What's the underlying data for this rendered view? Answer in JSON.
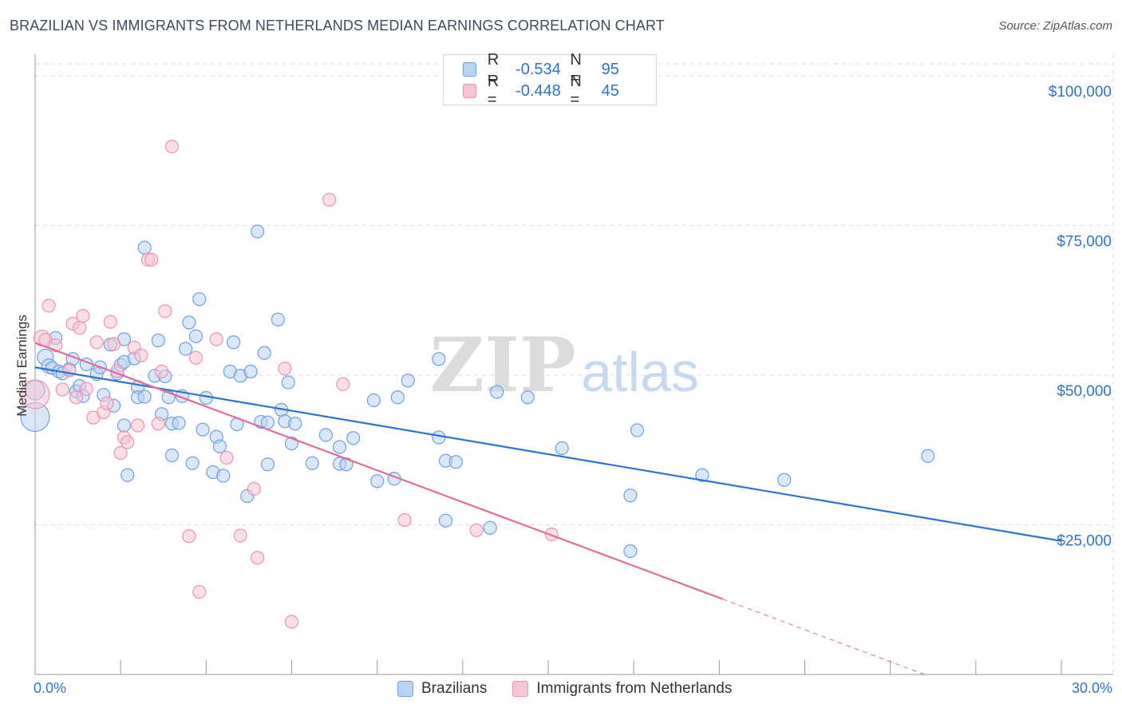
{
  "header": {
    "title": "BRAZILIAN VS IMMIGRANTS FROM NETHERLANDS MEDIAN EARNINGS CORRELATION CHART",
    "source": "Source: ZipAtlas.com"
  },
  "colors": {
    "blue": "#2e72d2",
    "blue_fill": "#b9d3f3",
    "blue_stroke": "#6f9fdf",
    "pink": "#e06b97",
    "pink_fill": "#f7c4d5",
    "pink_stroke": "#ec92b2",
    "grid": "#dcdcdc",
    "axis_text": "#2e72d2"
  },
  "legend_top": {
    "rows": [
      {
        "r_label": "R =",
        "r_value": "-0.534",
        "n_label": "N =",
        "n_value": "95"
      },
      {
        "r_label": "R =",
        "r_value": "-0.448",
        "n_label": "N =",
        "n_value": "45"
      }
    ]
  },
  "watermark": {
    "zip": "ZIP",
    "atlas": "atlas"
  },
  "chart_data": {
    "type": "scatter",
    "title": "BRAZILIAN VS IMMIGRANTS FROM NETHERLANDS MEDIAN EARNINGS CORRELATION CHART",
    "xlabel": "",
    "ylabel": "Median Earnings",
    "x_tick_labels": [
      "0.0%",
      "30.0%"
    ],
    "y_tick_labels": [
      "$100,000",
      "$75,000",
      "$50,000",
      "$25,000"
    ],
    "y_ticks": [
      100000,
      75000,
      50000,
      25000
    ],
    "xlim": [
      0,
      30
    ],
    "ylim": [
      0,
      102000
    ],
    "grid": true,
    "legend_placement": "bottom",
    "series": [
      {
        "name": "Brazilians",
        "color": "#2e72d2",
        "r": -0.534,
        "n": 95,
        "trend": {
          "x": [
            0,
            30
          ],
          "y": [
            51300,
            22300
          ],
          "dashed_from": null
        },
        "points": [
          [
            0.0,
            43000,
            18
          ],
          [
            0.0,
            47500,
            12
          ],
          [
            0.3,
            53000,
            10
          ],
          [
            0.4,
            51500,
            9
          ],
          [
            0.5,
            51200,
            8
          ],
          [
            0.6,
            56200,
            8
          ],
          [
            0.7,
            50600,
            8
          ],
          [
            0.8,
            50300,
            8
          ],
          [
            1.0,
            51000,
            8
          ],
          [
            1.1,
            52700,
            8
          ],
          [
            1.2,
            47300,
            8
          ],
          [
            1.3,
            48200,
            8
          ],
          [
            1.4,
            46500,
            8
          ],
          [
            1.5,
            51800,
            8
          ],
          [
            1.8,
            50200,
            8
          ],
          [
            1.9,
            51300,
            8
          ],
          [
            2.0,
            46700,
            8
          ],
          [
            2.2,
            55100,
            8
          ],
          [
            2.3,
            44900,
            8
          ],
          [
            2.4,
            50300,
            8
          ],
          [
            2.5,
            51700,
            8
          ],
          [
            2.6,
            56000,
            8
          ],
          [
            2.6,
            41600,
            8
          ],
          [
            2.6,
            52200,
            8
          ],
          [
            2.7,
            33300,
            8
          ],
          [
            2.9,
            52800,
            8
          ],
          [
            3.0,
            48000,
            8
          ],
          [
            3.0,
            46300,
            8
          ],
          [
            3.2,
            71300,
            8
          ],
          [
            3.2,
            46400,
            8
          ],
          [
            3.5,
            49900,
            8
          ],
          [
            3.6,
            55800,
            8
          ],
          [
            3.7,
            43500,
            8
          ],
          [
            3.8,
            49800,
            8
          ],
          [
            3.9,
            46300,
            8
          ],
          [
            4.0,
            41900,
            8
          ],
          [
            4.0,
            36600,
            8
          ],
          [
            4.2,
            42000,
            8
          ],
          [
            4.3,
            46500,
            8
          ],
          [
            4.4,
            54400,
            8
          ],
          [
            4.5,
            58800,
            8
          ],
          [
            4.6,
            35300,
            8
          ],
          [
            4.7,
            56500,
            8
          ],
          [
            4.8,
            62700,
            8
          ],
          [
            4.9,
            40900,
            8
          ],
          [
            5.0,
            46200,
            8
          ],
          [
            5.2,
            33800,
            8
          ],
          [
            5.3,
            39700,
            8
          ],
          [
            5.4,
            38100,
            8
          ],
          [
            5.5,
            33200,
            8
          ],
          [
            5.7,
            50600,
            8
          ],
          [
            5.8,
            55500,
            8
          ],
          [
            5.9,
            41800,
            8
          ],
          [
            6.0,
            49900,
            8
          ],
          [
            6.2,
            29800,
            8
          ],
          [
            6.3,
            50600,
            8
          ],
          [
            6.5,
            74000,
            8
          ],
          [
            6.6,
            42200,
            8
          ],
          [
            6.7,
            53700,
            8
          ],
          [
            6.8,
            42100,
            8
          ],
          [
            6.8,
            35100,
            8
          ],
          [
            7.1,
            59300,
            8
          ],
          [
            7.2,
            44200,
            8
          ],
          [
            7.3,
            42300,
            8
          ],
          [
            7.4,
            48800,
            8
          ],
          [
            7.5,
            38600,
            8
          ],
          [
            7.6,
            41900,
            8
          ],
          [
            8.1,
            35300,
            8
          ],
          [
            8.5,
            40000,
            8
          ],
          [
            8.9,
            38000,
            8
          ],
          [
            8.9,
            35200,
            8
          ],
          [
            9.1,
            35100,
            8
          ],
          [
            9.3,
            39500,
            8
          ],
          [
            9.9,
            45800,
            8
          ],
          [
            10.0,
            32300,
            8
          ],
          [
            10.5,
            32700,
            8
          ],
          [
            10.6,
            46300,
            8
          ],
          [
            10.9,
            49100,
            8
          ],
          [
            11.8,
            39600,
            8
          ],
          [
            11.8,
            52700,
            8
          ],
          [
            12.0,
            35700,
            8
          ],
          [
            12.0,
            25700,
            8
          ],
          [
            12.3,
            35500,
            8
          ],
          [
            13.3,
            24500,
            8
          ],
          [
            13.5,
            47200,
            8
          ],
          [
            14.4,
            46300,
            8
          ],
          [
            15.4,
            37800,
            8
          ],
          [
            17.4,
            29900,
            8
          ],
          [
            17.4,
            20600,
            8
          ],
          [
            17.6,
            40800,
            8
          ],
          [
            19.5,
            33300,
            8
          ],
          [
            21.9,
            32500,
            8
          ],
          [
            26.1,
            36500,
            8
          ]
        ]
      },
      {
        "name": "Immigrants from Netherlands",
        "color": "#e06b97",
        "r": -0.448,
        "n": 45,
        "trend": {
          "x": [
            0,
            20.1,
            26.0
          ],
          "y": [
            55400,
            12600,
            0
          ],
          "dashed_from": 20.1
        },
        "points": [
          [
            0.0,
            46800,
            18
          ],
          [
            0.2,
            56200,
            10
          ],
          [
            0.3,
            55900,
            8
          ],
          [
            0.4,
            61600,
            8
          ],
          [
            0.6,
            55000,
            8
          ],
          [
            0.8,
            47600,
            8
          ],
          [
            1.0,
            50800,
            8
          ],
          [
            1.1,
            58600,
            8
          ],
          [
            1.2,
            46300,
            8
          ],
          [
            1.3,
            57900,
            8
          ],
          [
            1.4,
            59900,
            8
          ],
          [
            1.5,
            47700,
            8
          ],
          [
            1.7,
            42900,
            8
          ],
          [
            1.8,
            55500,
            8
          ],
          [
            2.0,
            43800,
            8
          ],
          [
            2.1,
            45300,
            8
          ],
          [
            2.2,
            58900,
            8
          ],
          [
            2.3,
            55200,
            8
          ],
          [
            2.4,
            50700,
            8
          ],
          [
            2.5,
            37000,
            8
          ],
          [
            2.6,
            39600,
            8
          ],
          [
            2.7,
            38800,
            8
          ],
          [
            2.9,
            54600,
            8
          ],
          [
            3.0,
            41600,
            8
          ],
          [
            3.1,
            53300,
            8
          ],
          [
            3.3,
            69300,
            8
          ],
          [
            3.4,
            69300,
            8
          ],
          [
            3.6,
            41900,
            8
          ],
          [
            3.7,
            50600,
            8
          ],
          [
            3.8,
            60700,
            8
          ],
          [
            4.0,
            88200,
            8
          ],
          [
            4.5,
            23100,
            8
          ],
          [
            4.7,
            52900,
            8
          ],
          [
            4.8,
            13800,
            8
          ],
          [
            5.3,
            56000,
            8
          ],
          [
            5.6,
            36200,
            8
          ],
          [
            6.0,
            23200,
            8
          ],
          [
            6.4,
            31000,
            8
          ],
          [
            6.5,
            19500,
            8
          ],
          [
            7.3,
            51100,
            8
          ],
          [
            7.5,
            8800,
            8
          ],
          [
            8.6,
            79300,
            8
          ],
          [
            9.0,
            48500,
            8
          ],
          [
            10.8,
            25800,
            8
          ],
          [
            12.9,
            24100,
            8
          ],
          [
            15.1,
            23400,
            8
          ]
        ]
      }
    ]
  }
}
